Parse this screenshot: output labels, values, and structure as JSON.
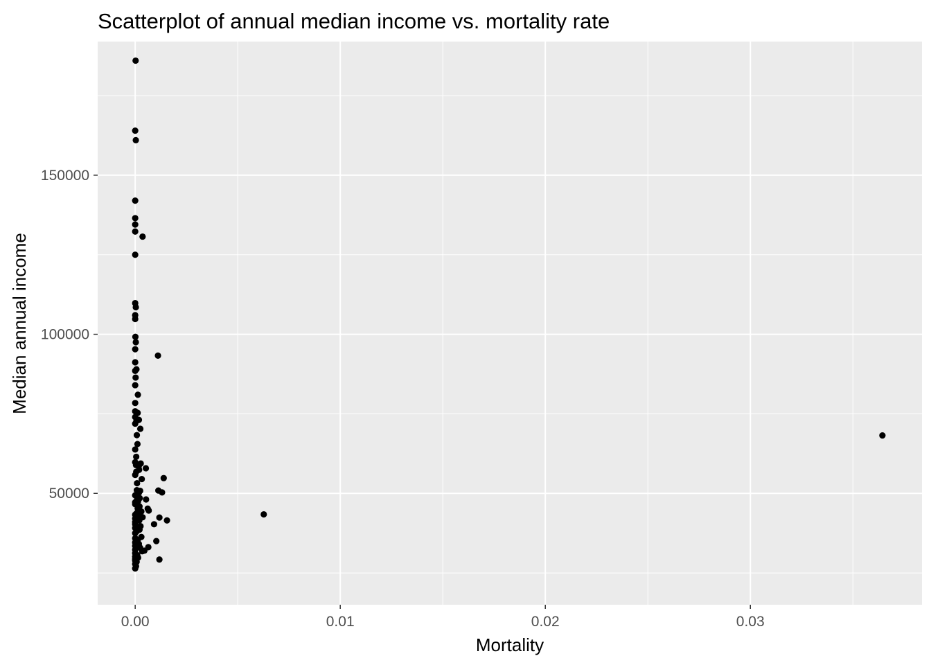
{
  "chart_data": {
    "type": "scatter",
    "title": "Scatterplot of annual median income vs. mortality rate",
    "xlabel": "Mortality",
    "ylabel": "Median annual income",
    "xlim": [
      -0.00183,
      0.03837
    ],
    "ylim": [
      15000,
      192000
    ],
    "x_ticks": [
      0.0,
      0.01,
      0.02,
      0.03
    ],
    "x_tick_labels": [
      "0.00",
      "0.01",
      "0.02",
      "0.03"
    ],
    "x_minor_ticks": [
      0.005,
      0.015,
      0.025,
      0.035
    ],
    "y_ticks": [
      50000,
      100000,
      150000
    ],
    "y_tick_labels": [
      "50000",
      "100000",
      "150000"
    ],
    "y_minor_ticks": [
      25000,
      75000,
      125000,
      175000
    ],
    "grid": true,
    "background": "#ebebeb",
    "grid_color": "#ffffff",
    "point_color": "#000000",
    "series": [
      {
        "x": [
          2e-05,
          0.0,
          3e-05,
          0.0,
          0.0,
          0.0,
          0.0,
          0.00036,
          0.0,
          0.0,
          3e-05,
          0.0,
          0.0,
          1e-05,
          3e-05,
          0.0,
          0.00111,
          0.0,
          6e-05,
          0.0,
          2e-05,
          0.0,
          0.00013,
          0.0,
          0.0,
          0.00012,
          0.0,
          0.00018,
          6e-05,
          0.0,
          0.00025,
          8e-05,
          0.00011,
          0.0,
          5e-05,
          0.0,
          0.00027,
          4e-05,
          0.00017,
          0.00052,
          0.00019,
          5e-05,
          0.0,
          0.00032,
          9e-05,
          0.00139,
          8e-05,
          0.00024,
          0.00018,
          0.0,
          0.00113,
          0.00131,
          0.00022,
          8e-05,
          0.0,
          0.00014,
          0.00053,
          0.0,
          0.00021,
          0.00012,
          0.00066,
          0.0003,
          7e-05,
          0.0,
          0.00016,
          0.00061,
          0.00036,
          0.0,
          0.0002,
          0.00118,
          0.0,
          0.00155,
          0.0,
          0.00026,
          0.00092,
          0.0,
          0.00021,
          8e-05,
          0.0,
          0.00103,
          0.0003,
          0.0,
          0.00012,
          0.00064,
          0.0,
          0.00018,
          0.0,
          0.00024,
          0.00045,
          0.0,
          0.00034,
          0.0,
          0.0001,
          0.00118,
          0.0,
          0.00014,
          0.0,
          7e-05,
          0.0,
          0.0,
          4e-05,
          0.0,
          0.00627,
          0.03644
        ],
        "y": [
          186000,
          164000,
          161000,
          142000,
          136500,
          134500,
          132300,
          130700,
          125000,
          109800,
          108500,
          106000,
          104800,
          99200,
          97500,
          95300,
          93300,
          91200,
          89000,
          88500,
          86400,
          84000,
          81000,
          78400,
          75800,
          75300,
          74000,
          73100,
          72800,
          71900,
          70300,
          68300,
          65500,
          63800,
          61500,
          59800,
          59400,
          58900,
          58500,
          57900,
          57400,
          56800,
          55800,
          54500,
          53200,
          54800,
          51000,
          50800,
          50200,
          49400,
          50900,
          50300,
          48500,
          47800,
          47200,
          47500,
          48100,
          46600,
          45900,
          45300,
          44600,
          44300,
          43800,
          43300,
          42800,
          45200,
          42500,
          42100,
          41500,
          42400,
          41000,
          41500,
          40300,
          39700,
          40300,
          39100,
          38600,
          38100,
          37500,
          35000,
          36300,
          35900,
          35300,
          33100,
          34600,
          34100,
          33500,
          32900,
          32000,
          32300,
          31800,
          31200,
          30600,
          29200,
          30100,
          29800,
          29400,
          28500,
          28900,
          27800,
          27100,
          26400,
          43400,
          68200
        ]
      }
    ]
  }
}
